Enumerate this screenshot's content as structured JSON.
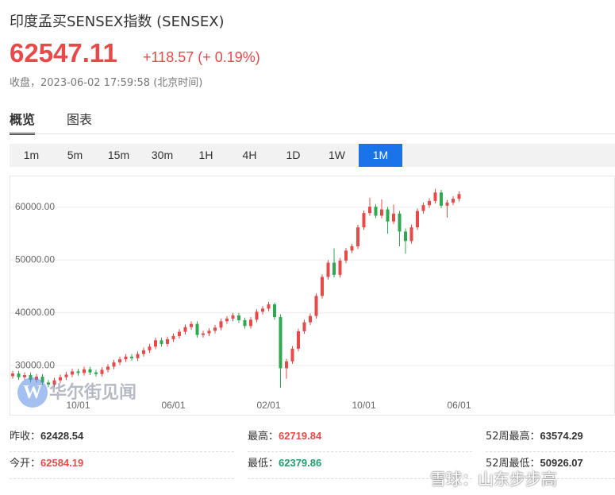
{
  "header": {
    "title": "印度孟买SENSEX指数 (SENSEX)",
    "price": 62547.11,
    "change": "+118.57 (+ 0.19%)",
    "status": "收盘，2023-06-02 17:59:58 (北京时间)"
  },
  "tabs": [
    "概览",
    "图表"
  ],
  "periods": [
    "1m",
    "5m",
    "15m",
    "30m",
    "1H",
    "4H",
    "1D",
    "1W",
    "1M"
  ],
  "active_period": "1M",
  "chart_data": {
    "type": "candlestick",
    "categories": [
      null,
      null,
      null,
      null,
      null,
      null,
      null,
      null,
      null,
      null,
      null,
      "10/01",
      null,
      null,
      null,
      null,
      null,
      null,
      null,
      null,
      null,
      null,
      null,
      null,
      null,
      null,
      null,
      "06/01",
      null,
      null,
      null,
      null,
      null,
      null,
      null,
      null,
      null,
      null,
      null,
      null,
      null,
      null,
      null,
      "02/01",
      null,
      null,
      null,
      null,
      null,
      null,
      null,
      null,
      null,
      null,
      null,
      null,
      null,
      null,
      null,
      "10/01",
      null,
      null,
      null,
      null,
      null,
      null,
      null,
      null,
      null,
      null,
      null,
      null,
      null,
      null,
      null,
      "06/01"
    ],
    "open": [
      28000,
      28500,
      27800,
      28200,
      27300,
      27900,
      26800,
      26400,
      27200,
      27800,
      28300,
      28900,
      28600,
      29300,
      28700,
      28400,
      29200,
      29800,
      30600,
      31200,
      31700,
      31400,
      32200,
      32900,
      33600,
      34800,
      34100,
      35000,
      35600,
      36400,
      37300,
      37900,
      35800,
      36100,
      36600,
      37200,
      38400,
      38900,
      39500,
      38600,
      37500,
      38700,
      40200,
      40800,
      41600,
      39200,
      29500,
      30800,
      33200,
      36500,
      38200,
      39400,
      43200,
      46800,
      49500,
      47200,
      49900,
      51800,
      52600,
      56200,
      58900,
      60100,
      58400,
      59600,
      57300,
      58800,
      55400,
      53600,
      56200,
      59300,
      60400,
      61200,
      62800,
      60300,
      60900,
      61600
    ],
    "high": [
      29000,
      29000,
      28700,
      28700,
      28400,
      28400,
      27300,
      27700,
      28300,
      28800,
      29400,
      29400,
      29800,
      29800,
      29200,
      29700,
      30300,
      31100,
      31700,
      32200,
      32200,
      32700,
      33400,
      34100,
      35300,
      35300,
      35500,
      36100,
      36900,
      37800,
      38400,
      38400,
      36600,
      37100,
      37700,
      38900,
      39400,
      40000,
      40000,
      39100,
      39200,
      40700,
      41300,
      42100,
      41900,
      39700,
      31300,
      33700,
      37000,
      38700,
      39900,
      43700,
      47300,
      50000,
      52200,
      50400,
      52300,
      53100,
      56700,
      59400,
      61800,
      60600,
      61500,
      60100,
      60500,
      59300,
      56000,
      56700,
      59800,
      60900,
      61700,
      63500,
      63300,
      61400,
      62100,
      63000
    ],
    "low": [
      27500,
      27300,
      27300,
      26800,
      26800,
      26300,
      25900,
      25900,
      26700,
      27300,
      27800,
      28100,
      28100,
      28200,
      27900,
      27900,
      28700,
      29300,
      30100,
      30700,
      30900,
      30900,
      31700,
      32400,
      33100,
      33600,
      33600,
      34500,
      35100,
      35900,
      36800,
      35300,
      35300,
      35600,
      36100,
      36700,
      37900,
      38400,
      38100,
      37000,
      37000,
      38200,
      39700,
      40300,
      38700,
      25800,
      27500,
      30300,
      32700,
      36000,
      37700,
      38900,
      42700,
      46300,
      46700,
      46700,
      49400,
      51300,
      52100,
      55700,
      58400,
      57900,
      57900,
      55000,
      56800,
      52600,
      51200,
      53100,
      55700,
      58800,
      59900,
      60700,
      59800,
      58000,
      60400,
      61100
    ],
    "close": [
      28500,
      27800,
      28200,
      27300,
      27900,
      26800,
      26400,
      27200,
      27800,
      28300,
      28900,
      28600,
      29300,
      28700,
      28400,
      29200,
      29800,
      30600,
      31200,
      31700,
      31400,
      32200,
      32900,
      33600,
      34800,
      34100,
      35000,
      35600,
      36400,
      37300,
      37900,
      35800,
      36100,
      36600,
      37200,
      38400,
      38900,
      39500,
      38600,
      37500,
      38700,
      40200,
      40800,
      41600,
      39200,
      29500,
      30800,
      33200,
      36500,
      38200,
      39400,
      43200,
      46800,
      49500,
      47200,
      49900,
      51800,
      52600,
      56200,
      58900,
      60100,
      58400,
      59600,
      57300,
      58800,
      55400,
      53600,
      56200,
      59300,
      60400,
      61200,
      62800,
      60300,
      60900,
      61600,
      62500
    ],
    "up_color": "#e84a4a",
    "down_color": "#2fa84f",
    "ylim": [
      24300,
      65700
    ],
    "yticks": [
      {
        "value": 30000,
        "label": "30000.00"
      },
      {
        "value": 40000,
        "label": "40000.00"
      },
      {
        "value": 50000,
        "label": "50000.00"
      },
      {
        "value": 60000,
        "label": "60000.00"
      }
    ],
    "grid": true
  },
  "watermarks": [
    "华尔街见闻",
    "雪球：山东步步高"
  ],
  "stats": [
    {
      "label": "昨收：",
      "value": 62428.54
    },
    {
      "label": "最高：",
      "value": 62719.84
    },
    {
      "label": "52周最高：",
      "value": 63574.29
    },
    {
      "label": "今开：",
      "value": 62584.19
    },
    {
      "label": "最低：",
      "value": 62379.86
    },
    {
      "label": "52周最低：",
      "value": 50926.07
    }
  ]
}
